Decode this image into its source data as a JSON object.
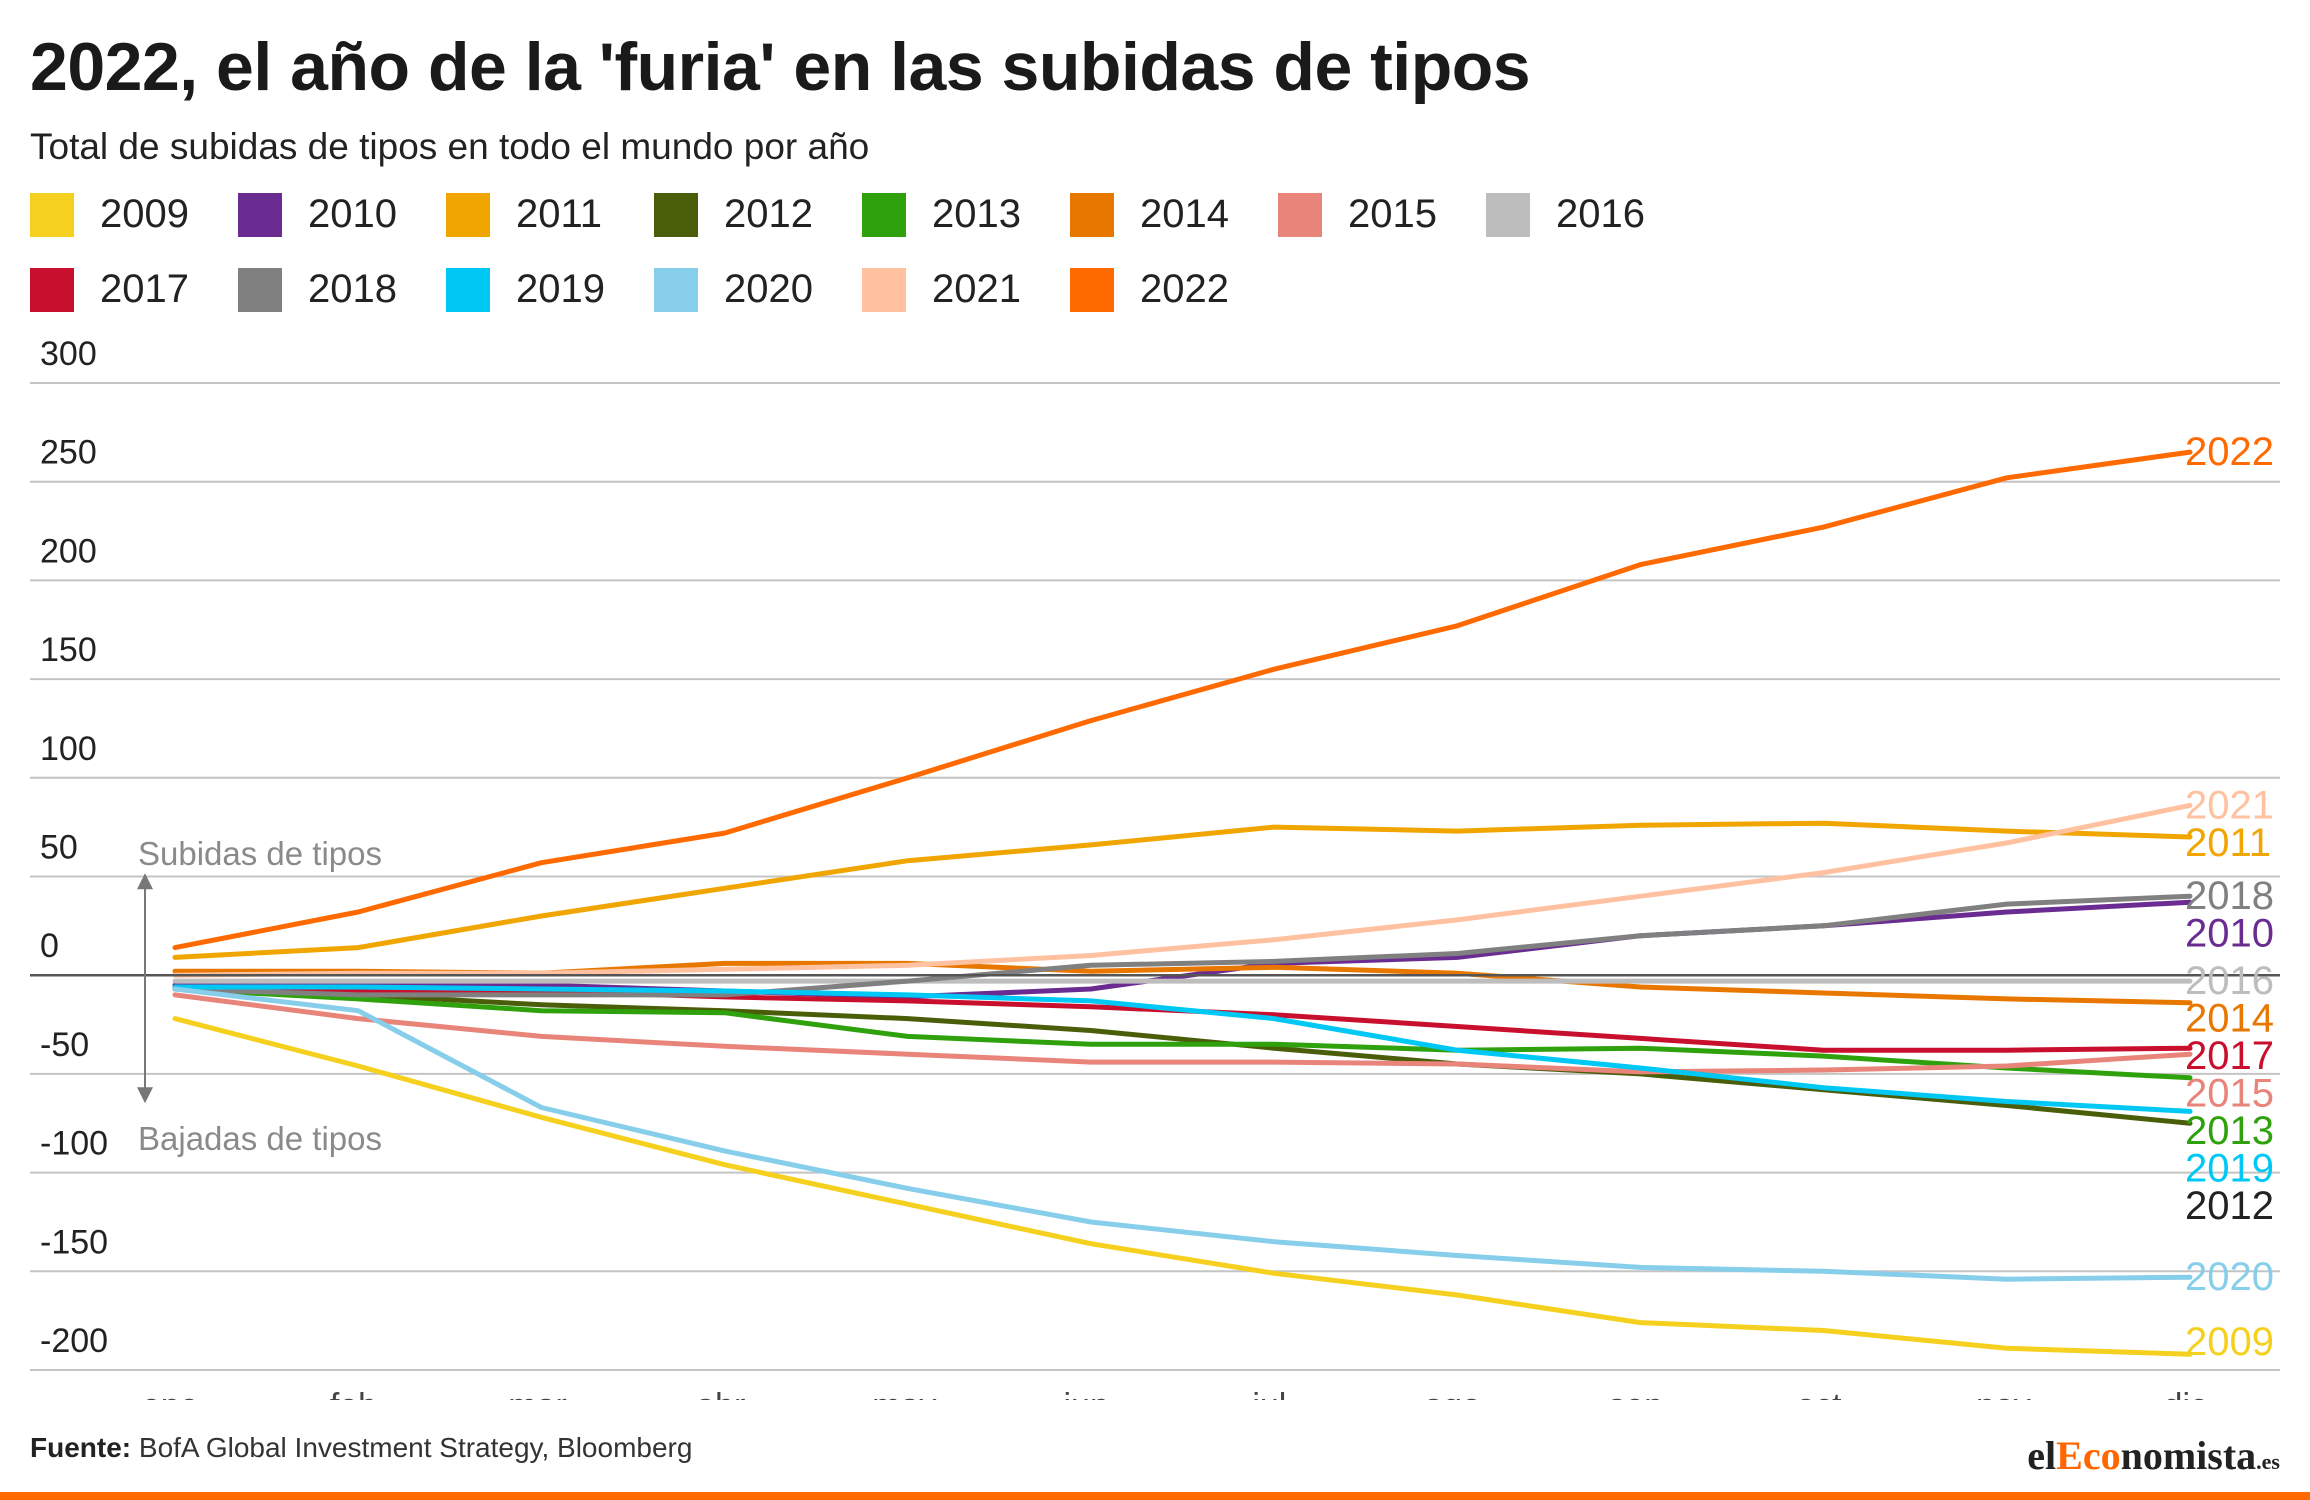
{
  "header": {
    "title": "2022, el año de la 'furia' en las subidas de tipos",
    "subtitle": "Total de subidas de tipos en todo el mundo por año"
  },
  "legend": [
    {
      "label": "2009",
      "color": "#f5d01e"
    },
    {
      "label": "2010",
      "color": "#6a2c91"
    },
    {
      "label": "2011",
      "color": "#f0a500"
    },
    {
      "label": "2012",
      "color": "#4a5e0a"
    },
    {
      "label": "2013",
      "color": "#2ea10d"
    },
    {
      "label": "2014",
      "color": "#e87700"
    },
    {
      "label": "2015",
      "color": "#e8847a"
    },
    {
      "label": "2016",
      "color": "#bdbdbd"
    },
    {
      "label": "2017",
      "color": "#c8102e"
    },
    {
      "label": "2018",
      "color": "#808080"
    },
    {
      "label": "2019",
      "color": "#00c8f5"
    },
    {
      "label": "2020",
      "color": "#87ceeb"
    },
    {
      "label": "2021",
      "color": "#ffc1a0"
    },
    {
      "label": "2022",
      "color": "#ff6a00"
    }
  ],
  "chart_data": {
    "type": "line",
    "title": "2022, el año de la 'furia' en las subidas de tipos",
    "subtitle": "Total de subidas de tipos en todo el mundo por año",
    "x": [
      "ene.",
      "feb.",
      "mar.",
      "abr.",
      "may.",
      "jun.",
      "jul.",
      "ago.",
      "sep.",
      "oct.",
      "nov.",
      "dic."
    ],
    "ylim": [
      -200,
      300
    ],
    "yticks": [
      300,
      250,
      200,
      150,
      100,
      50,
      0,
      -50,
      -100,
      -150,
      -200
    ],
    "grid": true,
    "legend_position": "top",
    "annotations": {
      "up": "Subidas de tipos",
      "down": "Bajadas de tipos"
    },
    "series": [
      {
        "name": "2009",
        "label_color": "#f5d01e",
        "values": [
          -22,
          -46,
          -72,
          -96,
          -116,
          -136,
          -151,
          -162,
          -176,
          -180,
          -189,
          -192
        ]
      },
      {
        "name": "2010",
        "label_color": "#6a2c91",
        "values": [
          -5,
          -5,
          -5,
          -8,
          -11,
          -7,
          6,
          9,
          20,
          25,
          32,
          37
        ]
      },
      {
        "name": "2011",
        "label_color": "#f0a500",
        "values": [
          9,
          14,
          30,
          44,
          58,
          66,
          75,
          73,
          76,
          77,
          73,
          70
        ]
      },
      {
        "name": "2012",
        "label_color": "#222222",
        "values": [
          -6,
          -10,
          -15,
          -18,
          -22,
          -28,
          -37,
          -45,
          -50,
          -58,
          -66,
          -75
        ]
      },
      {
        "name": "2013",
        "label_color": "#2ea10d",
        "values": [
          -7,
          -12,
          -18,
          -19,
          -31,
          -35,
          -35,
          -38,
          -37,
          -41,
          -47,
          -52
        ]
      },
      {
        "name": "2014",
        "label_color": "#e87700",
        "values": [
          2,
          2,
          1,
          6,
          6,
          2,
          4,
          1,
          -6,
          -9,
          -12,
          -14
        ]
      },
      {
        "name": "2015",
        "label_color": "#e8847a",
        "values": [
          -10,
          -22,
          -31,
          -36,
          -40,
          -44,
          -44,
          -45,
          -49,
          -48,
          -46,
          -40
        ]
      },
      {
        "name": "2016",
        "label_color": "#bdbdbd",
        "values": [
          -3,
          -3,
          -3,
          -3,
          -3,
          -3,
          -3,
          -3,
          -3,
          -3,
          -3,
          -3
        ]
      },
      {
        "name": "2017",
        "label_color": "#c8102e",
        "values": [
          -7,
          -8,
          -8,
          -11,
          -13,
          -16,
          -20,
          -26,
          -32,
          -38,
          -38,
          -37
        ]
      },
      {
        "name": "2018",
        "label_color": "#808080",
        "values": [
          -7,
          -10,
          -10,
          -10,
          -3,
          5,
          7,
          11,
          20,
          25,
          36,
          40
        ]
      },
      {
        "name": "2019",
        "label_color": "#00c8f5",
        "values": [
          -6,
          -6,
          -7,
          -8,
          -10,
          -13,
          -22,
          -38,
          -47,
          -57,
          -64,
          -69
        ]
      },
      {
        "name": "2020",
        "label_color": "#87ceeb",
        "values": [
          -7,
          -18,
          -67,
          -89,
          -108,
          -125,
          -135,
          -142,
          -148,
          -150,
          -154,
          -153
        ]
      },
      {
        "name": "2021",
        "label_color": "#ffc1a0",
        "values": [
          0,
          1,
          1,
          3,
          5,
          10,
          18,
          28,
          40,
          52,
          67,
          86
        ]
      },
      {
        "name": "2022",
        "label_color": "#ff6a00",
        "values": [
          14,
          32,
          57,
          72,
          100,
          129,
          155,
          177,
          208,
          227,
          252,
          265
        ]
      }
    ],
    "end_label_order": [
      "2022",
      "2021",
      "2011",
      "2018",
      "2010",
      "2014",
      "2016",
      "2015",
      "2017",
      "2013",
      "2019",
      "2012",
      "2020",
      "2009"
    ]
  },
  "footer": {
    "source_label": "Fuente:",
    "source_text": "BofA Global Investment Strategy, Bloomberg",
    "brand_el": "el",
    "brand_accent": "Eco",
    "brand_rest": "nomista",
    "brand_tld": ".es"
  }
}
